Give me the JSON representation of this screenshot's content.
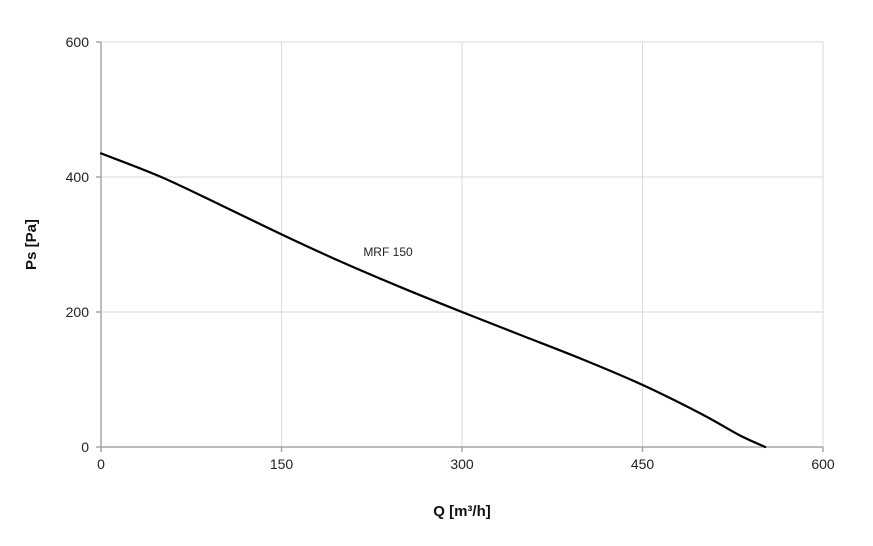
{
  "chart_data": {
    "type": "line",
    "xlabel": "Q [m³/h]",
    "ylabel": "Ps [Pa]",
    "xlim": [
      0,
      600
    ],
    "ylim": [
      0,
      600
    ],
    "xticks": [
      0,
      150,
      300,
      450,
      600
    ],
    "yticks": [
      0,
      200,
      400,
      600
    ],
    "xtick_labels": [
      "0",
      "150",
      "300",
      "450",
      "600"
    ],
    "ytick_labels": [
      "0",
      "200",
      "400",
      "600"
    ],
    "grid": true,
    "legend": "none",
    "series": [
      {
        "name": "MRF 150",
        "color": "#000000",
        "x": [
          0,
          50,
          100,
          150,
          200,
          250,
          300,
          350,
          400,
          450,
          500,
          530,
          552
        ],
        "y": [
          435,
          400,
          358,
          315,
          274,
          236,
          200,
          165,
          130,
          92,
          48,
          18,
          0
        ]
      }
    ],
    "annotations": [
      {
        "text": "MRF 150",
        "x": 218,
        "y": 283
      }
    ]
  },
  "colors": {
    "grid": "#d9d9d9",
    "axis": "#a6a6a6",
    "line": "#000000"
  }
}
